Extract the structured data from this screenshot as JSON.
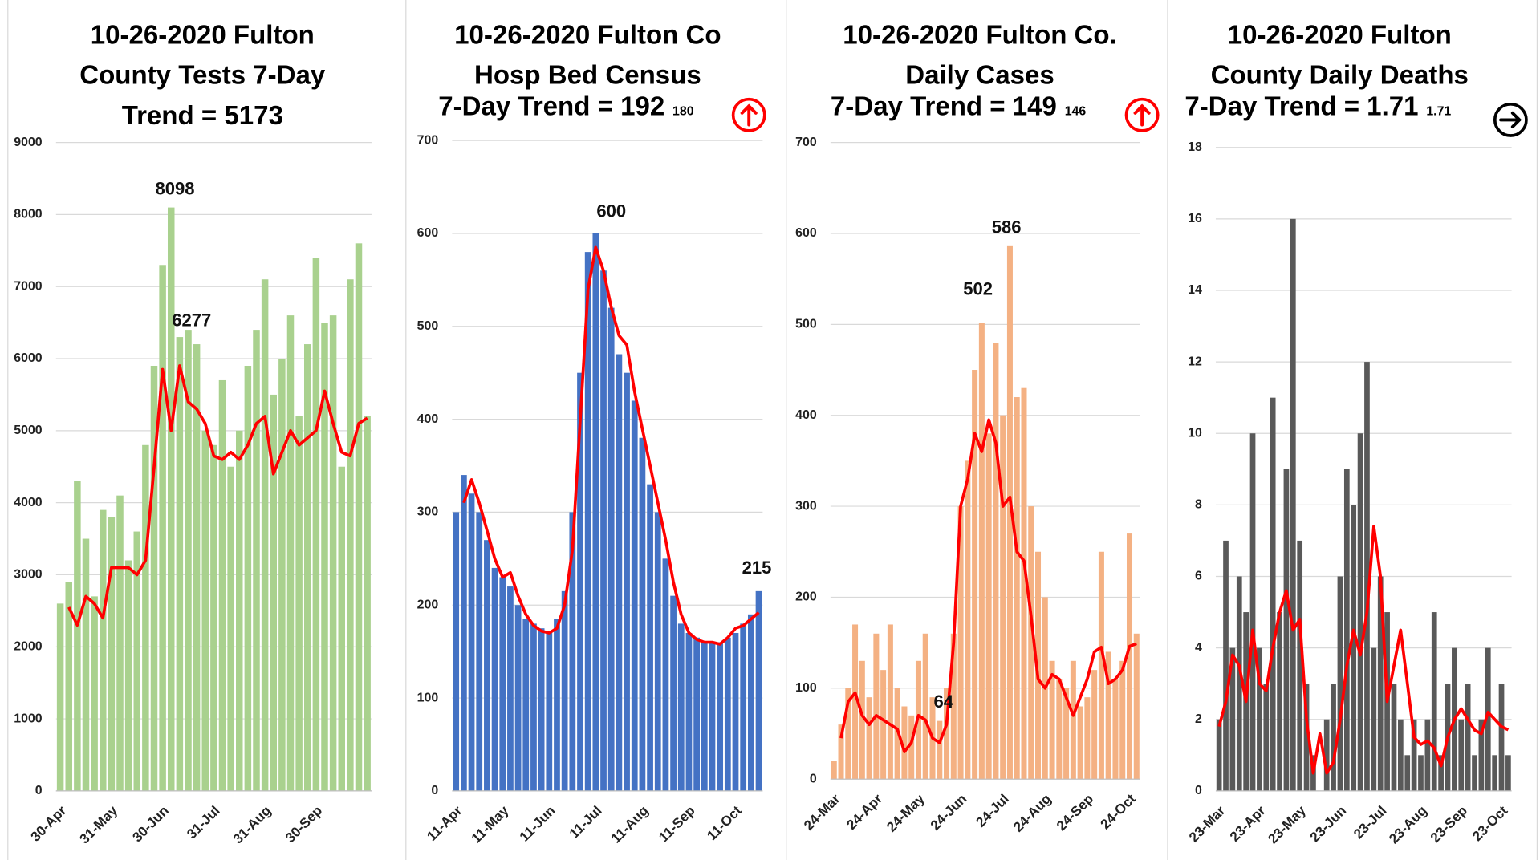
{
  "chart_data": [
    {
      "type": "bar",
      "title": [
        "10-26-2020 Fulton",
        "County Tests 7-Day",
        "Trend = 5173"
      ],
      "categories": [
        "30-Apr",
        null,
        null,
        null,
        null,
        null,
        "31-May",
        null,
        null,
        null,
        null,
        null,
        "30-Jun",
        null,
        null,
        null,
        null,
        null,
        "31-Jul",
        null,
        null,
        null,
        null,
        null,
        "31-Aug",
        null,
        null,
        null,
        null,
        null,
        "30-Sep",
        null,
        null,
        null,
        null,
        null,
        null
      ],
      "values": [
        2600,
        2900,
        4300,
        3500,
        2700,
        3900,
        3800,
        4100,
        3200,
        3600,
        4800,
        5900,
        7300,
        8098,
        6300,
        6400,
        6200,
        5000,
        4800,
        5700,
        4500,
        5000,
        5900,
        6400,
        7100,
        5500,
        6000,
        6600,
        5200,
        6200,
        7400,
        6500,
        6600,
        4500,
        7100,
        7600,
        5200
      ],
      "color": "#a9d18e",
      "trend": [
        null,
        2550,
        2300,
        2700,
        2600,
        2400,
        3100,
        3100,
        3100,
        3000,
        3200,
        4500,
        5850,
        5000,
        5900,
        5400,
        5300,
        5100,
        4650,
        4600,
        4700,
        4600,
        4800,
        5100,
        5200,
        4400,
        4700,
        5000,
        4800,
        4900,
        5000,
        5550,
        5100,
        4700,
        4650,
        5100,
        5173
      ],
      "trend_color": "#ff0000",
      "ylim": [
        0,
        9000
      ],
      "yticks": [
        0,
        1000,
        2000,
        3000,
        4000,
        5000,
        6000,
        7000,
        8000,
        9000
      ],
      "grid": true,
      "annotations": [
        8098,
        6277
      ]
    },
    {
      "type": "bar",
      "title": [
        "10-26-2020 Fulton Co",
        "Hosp Bed Census",
        "7-Day Trend = 192"
      ],
      "prior_trend": 180,
      "trend_direction": "up",
      "arrow_color": "#ff0000",
      "categories": [
        "11-Apr",
        null,
        null,
        null,
        null,
        null,
        "11-May",
        null,
        null,
        null,
        null,
        null,
        "11-Jun",
        null,
        null,
        null,
        null,
        null,
        "11-Jul",
        null,
        null,
        null,
        null,
        null,
        "11-Aug",
        null,
        null,
        null,
        null,
        null,
        "11-Sep",
        null,
        null,
        null,
        null,
        null,
        "11-Oct",
        null,
        null,
        null
      ],
      "values": [
        300,
        340,
        320,
        300,
        270,
        240,
        230,
        220,
        200,
        185,
        180,
        175,
        170,
        185,
        215,
        300,
        450,
        580,
        600,
        560,
        520,
        470,
        450,
        420,
        380,
        330,
        300,
        250,
        210,
        180,
        170,
        165,
        160,
        160,
        160,
        165,
        170,
        180,
        190,
        215
      ],
      "color": "#4472c4",
      "trend": [
        null,
        310,
        335,
        310,
        280,
        250,
        230,
        235,
        210,
        190,
        178,
        172,
        170,
        175,
        200,
        260,
        400,
        540,
        585,
        560,
        520,
        490,
        480,
        430,
        390,
        350,
        310,
        270,
        225,
        190,
        170,
        163,
        160,
        160,
        158,
        165,
        175,
        178,
        185,
        192
      ],
      "trend_color": "#ff0000",
      "ylim": [
        0,
        700
      ],
      "yticks": [
        0,
        100,
        200,
        300,
        400,
        500,
        600,
        700
      ],
      "grid": true,
      "annotations": [
        600,
        215
      ]
    },
    {
      "type": "bar",
      "title": [
        "10-26-2020 Fulton Co.",
        "Daily Cases",
        "7-Day Trend = 149"
      ],
      "prior_trend": 146,
      "trend_direction": "up",
      "arrow_color": "#ff0000",
      "categories": [
        "24-Mar",
        null,
        null,
        null,
        null,
        null,
        "24-Apr",
        null,
        null,
        null,
        null,
        null,
        "24-May",
        null,
        null,
        null,
        null,
        null,
        "24-Jun",
        null,
        null,
        null,
        null,
        null,
        "24-Jul",
        null,
        null,
        null,
        null,
        null,
        "24-Aug",
        null,
        null,
        null,
        null,
        null,
        "24-Sep",
        null,
        null,
        null,
        null,
        null,
        "24-Oct",
        null
      ],
      "values": [
        20,
        60,
        100,
        170,
        130,
        90,
        160,
        120,
        170,
        100,
        80,
        70,
        130,
        160,
        90,
        64,
        100,
        160,
        300,
        350,
        450,
        502,
        380,
        480,
        400,
        586,
        420,
        430,
        300,
        250,
        200,
        130,
        110,
        100,
        130,
        80,
        90,
        120,
        250,
        140,
        110,
        130,
        270,
        160
      ],
      "color": "#f4b183",
      "trend": [
        null,
        45,
        85,
        95,
        70,
        60,
        70,
        65,
        60,
        55,
        30,
        40,
        70,
        65,
        45,
        40,
        60,
        150,
        300,
        330,
        380,
        360,
        395,
        370,
        300,
        310,
        250,
        240,
        180,
        110,
        100,
        115,
        110,
        90,
        70,
        90,
        110,
        140,
        145,
        105,
        110,
        120,
        146,
        149
      ],
      "trend_color": "#ff0000",
      "ylim": [
        0,
        700
      ],
      "yticks": [
        0,
        100,
        200,
        300,
        400,
        500,
        600,
        700
      ],
      "grid": true,
      "annotations": [
        502,
        586,
        64
      ]
    },
    {
      "type": "bar",
      "title": [
        "10-26-2020 Fulton",
        "County Daily Deaths",
        "7-Day Trend = 1.71"
      ],
      "prior_trend": 1.71,
      "trend_direction": "right",
      "arrow_color": "#000000",
      "categories": [
        "23-Mar",
        null,
        null,
        null,
        null,
        null,
        "23-Apr",
        null,
        null,
        null,
        null,
        null,
        "23-May",
        null,
        null,
        null,
        null,
        null,
        "23-Jun",
        null,
        null,
        null,
        null,
        null,
        "23-Jul",
        null,
        null,
        null,
        null,
        null,
        "23-Aug",
        null,
        null,
        null,
        null,
        null,
        "23-Sep",
        null,
        null,
        null,
        null,
        null,
        "23-Oct",
        null
      ],
      "values": [
        2,
        7,
        4,
        6,
        5,
        10,
        4,
        3,
        11,
        5,
        9,
        16,
        7,
        3,
        1,
        0,
        2,
        3,
        6,
        9,
        8,
        10,
        12,
        4,
        6,
        5,
        3,
        2,
        1,
        2,
        1,
        2,
        5,
        1,
        3,
        4,
        2,
        3,
        1,
        2,
        4,
        1,
        3,
        1
      ],
      "color": "#595959",
      "trend": [
        1.8,
        2.5,
        3.8,
        3.5,
        2.5,
        4.5,
        3.0,
        2.8,
        4.0,
        5.0,
        5.6,
        4.5,
        4.8,
        2.0,
        0.5,
        1.6,
        0.5,
        0.8,
        2.0,
        3.5,
        4.5,
        3.8,
        5.0,
        7.4,
        6.0,
        2.5,
        3.5,
        4.5,
        3.0,
        1.5,
        1.3,
        1.4,
        1.2,
        0.7,
        1.5,
        2.0,
        2.3,
        2.0,
        1.7,
        1.6,
        2.2,
        2.0,
        1.8,
        1.71
      ],
      "trend_color": "#ff0000",
      "ylim": [
        0,
        18
      ],
      "yticks": [
        0,
        2,
        4,
        6,
        8,
        10,
        12,
        14,
        16,
        18
      ],
      "grid": true,
      "annotations": []
    }
  ]
}
